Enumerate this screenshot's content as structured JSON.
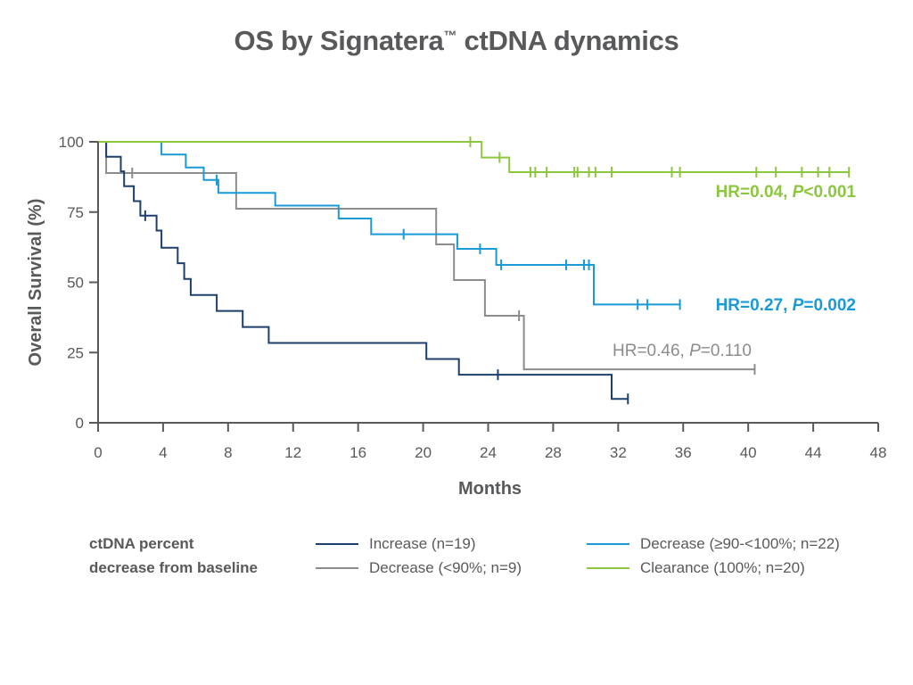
{
  "chart_data": {
    "type": "line",
    "title": "OS by Signatera",
    "title_mark": "™",
    "title_suffix": " ctDNA dynamics",
    "xlabel": "Months",
    "ylabel": "Overall Survival (%)",
    "xlim": [
      0,
      48
    ],
    "ylim": [
      0,
      100
    ],
    "xticks": [
      0,
      4,
      8,
      12,
      16,
      20,
      24,
      28,
      32,
      36,
      40,
      44,
      48
    ],
    "yticks": [
      0,
      25,
      50,
      75,
      100
    ],
    "grid": false,
    "legend_title": [
      "ctDNA percent",
      "decrease from baseline"
    ],
    "legend_placement": "bottom",
    "series": [
      {
        "name": "Increase (n=19)",
        "color": "#1d3f6e",
        "steps": [
          [
            0,
            100
          ],
          [
            0.5,
            94.7
          ],
          [
            1.4,
            89.5
          ],
          [
            1.6,
            84.2
          ],
          [
            2.2,
            78.9
          ],
          [
            2.6,
            73.7
          ],
          [
            3.6,
            68.4
          ],
          [
            3.9,
            62.3
          ],
          [
            4.9,
            56.8
          ],
          [
            5.3,
            51.2
          ],
          [
            5.7,
            45.5
          ],
          [
            7.3,
            39.8
          ],
          [
            8.9,
            34.1
          ],
          [
            10.5,
            28.4
          ],
          [
            20.2,
            22.7
          ],
          [
            22.2,
            17.1
          ],
          [
            31.6,
            8.5
          ],
          [
            32.6,
            8.5
          ]
        ],
        "censors": [
          [
            2.9,
            73.7
          ],
          [
            24.6,
            17.1
          ],
          [
            32.6,
            8.5
          ]
        ]
      },
      {
        "name": "Decrease (<90%; n=9)",
        "color": "#8a8c8e",
        "steps": [
          [
            0,
            100
          ],
          [
            0.5,
            88.9
          ],
          [
            8.5,
            76.2
          ],
          [
            20.8,
            63.5
          ],
          [
            21.9,
            50.8
          ],
          [
            23.8,
            38.1
          ],
          [
            26.2,
            19.0
          ],
          [
            40.4,
            19.0
          ]
        ],
        "censors": [
          [
            2.1,
            88.9
          ],
          [
            25.9,
            38.1
          ],
          [
            40.4,
            19.0
          ]
        ]
      },
      {
        "name": "Decrease (≥90-<100%; n=22)",
        "color": "#1a9ad6",
        "steps": [
          [
            0,
            100
          ],
          [
            3.9,
            95.5
          ],
          [
            5.4,
            90.9
          ],
          [
            6.5,
            86.4
          ],
          [
            7.4,
            81.8
          ],
          [
            10.9,
            77.3
          ],
          [
            14.8,
            72.7
          ],
          [
            16.8,
            67.1
          ],
          [
            22.1,
            61.9
          ],
          [
            24.5,
            56.2
          ],
          [
            30.5,
            42.1
          ],
          [
            35.8,
            42.1
          ]
        ],
        "censors": [
          [
            7.3,
            86.4
          ],
          [
            18.8,
            67.1
          ],
          [
            23.5,
            61.9
          ],
          [
            24.8,
            56.2
          ],
          [
            28.8,
            56.2
          ],
          [
            29.9,
            56.2
          ],
          [
            30.2,
            56.2
          ],
          [
            33.2,
            42.1
          ],
          [
            33.8,
            42.1
          ],
          [
            35.8,
            42.1
          ]
        ],
        "hr_label": "HR=0.27, ",
        "hr_p": "P",
        "hr_value": "=0.002"
      },
      {
        "name": "Clearance (100%; n=20)",
        "color": "#8dc63f",
        "steps": [
          [
            0,
            100
          ],
          [
            23.6,
            94.4
          ],
          [
            25.3,
            89.2
          ],
          [
            46.2,
            89.2
          ]
        ],
        "censors": [
          [
            22.9,
            100
          ],
          [
            24.7,
            94.4
          ],
          [
            26.6,
            89.2
          ],
          [
            26.9,
            89.2
          ],
          [
            27.6,
            89.2
          ],
          [
            29.3,
            89.2
          ],
          [
            29.5,
            89.2
          ],
          [
            30.2,
            89.2
          ],
          [
            30.6,
            89.2
          ],
          [
            31.6,
            89.2
          ],
          [
            35.3,
            89.2
          ],
          [
            35.8,
            89.2
          ],
          [
            40.5,
            89.2
          ],
          [
            41.7,
            89.2
          ],
          [
            43.3,
            89.2
          ],
          [
            44.3,
            89.2
          ],
          [
            45.0,
            89.2
          ],
          [
            46.2,
            89.2
          ]
        ],
        "hr_label": "HR=0.04, ",
        "hr_p": "P",
        "hr_value": "<0.001"
      }
    ],
    "gray_hr": {
      "label": "HR=0.46, ",
      "p": "P",
      "value": "=0.110"
    }
  }
}
